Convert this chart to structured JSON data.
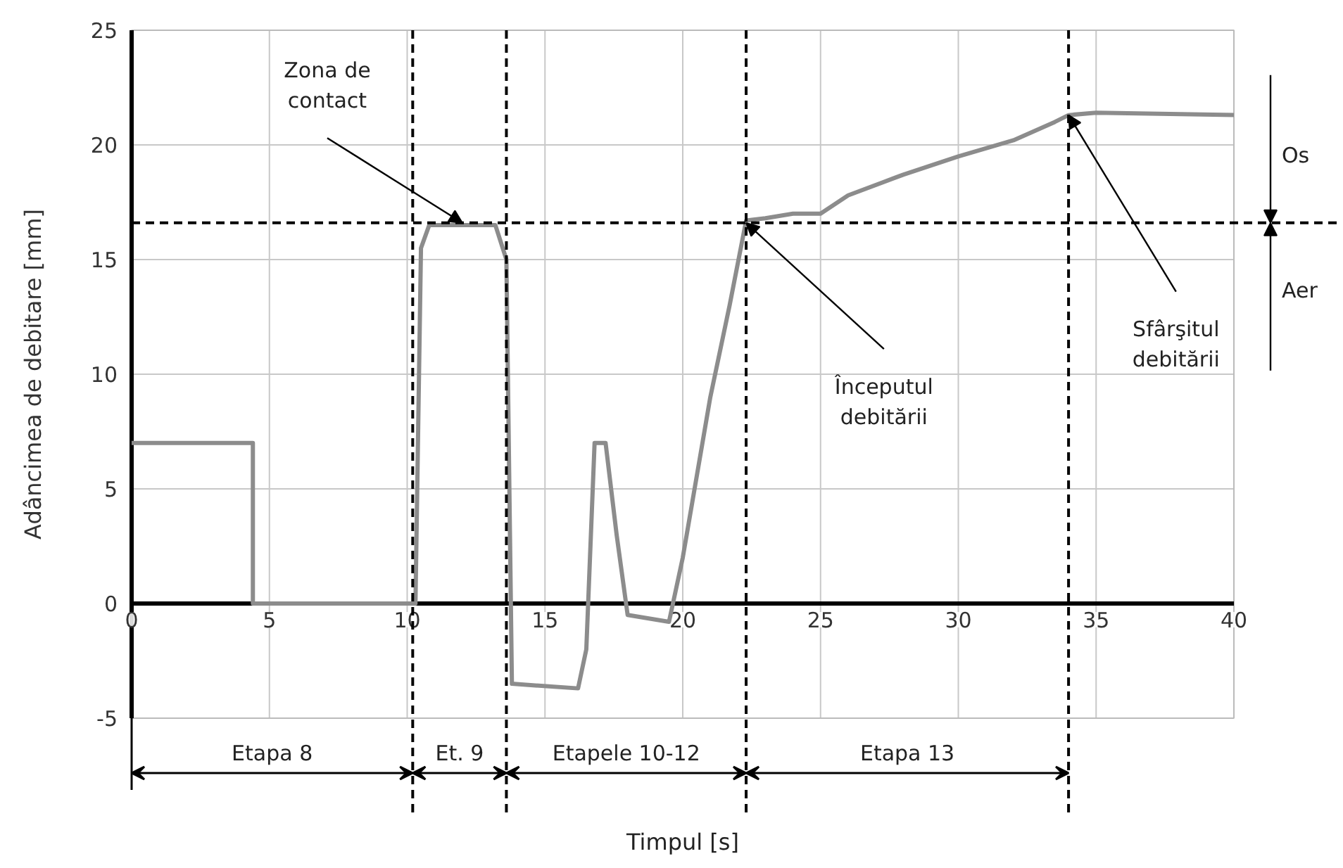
{
  "chart_data": {
    "type": "line",
    "xlabel": "Timpul [s]",
    "ylabel": "Adâncimea de debitare [mm]",
    "x": [
      0,
      4.4,
      4.4,
      10.3,
      10.5,
      10.8,
      13.2,
      13.6,
      13.8,
      16.2,
      16.5,
      16.8,
      17.2,
      17.6,
      18,
      19.5,
      20,
      21,
      21.7,
      22.3,
      23,
      24,
      25,
      26,
      28,
      30,
      32,
      33.5,
      34,
      35,
      40
    ],
    "series": [
      {
        "color": "#8c8c8c",
        "values": [
          7,
          7,
          0,
          0,
          15.5,
          16.5,
          16.5,
          15,
          -3.5,
          -3.7,
          -2,
          7,
          7,
          3,
          -0.5,
          -0.8,
          2,
          9,
          13,
          16.7,
          16.8,
          17,
          17,
          17.8,
          18.7,
          19.5,
          20.2,
          21,
          21.3,
          21.4,
          21.3
        ]
      }
    ],
    "xlim": [
      0,
      40
    ],
    "ylim": [
      -5,
      25
    ],
    "xticks": [
      0,
      5,
      10,
      15,
      20,
      25,
      30,
      35,
      40
    ],
    "yticks": [
      -5,
      0,
      5,
      10,
      15,
      20,
      25
    ],
    "grid": true,
    "line_style": "solid",
    "ref_lines": [
      {
        "axis": "y",
        "value": 16.6,
        "line_style": "dashed"
      },
      {
        "axis": "x",
        "value": 10.2,
        "line_style": "dashed"
      },
      {
        "axis": "x",
        "value": 13.6,
        "line_style": "dashed"
      },
      {
        "axis": "x",
        "value": 22.3,
        "line_style": "dashed"
      },
      {
        "axis": "x",
        "value": 34,
        "line_style": "dashed"
      }
    ],
    "annotations": [
      {
        "text": "Zona de contact",
        "x": 12,
        "y": 16.6
      },
      {
        "text": "Începutul debitării",
        "x": 22.3,
        "y": 16.6
      },
      {
        "text": "Sfârşitul debitării",
        "x": 34,
        "y": 21.3
      },
      "Etapa 8",
      "Et. 9",
      "Etapele 10-12",
      "Etapa 13",
      "Os",
      "Aer"
    ]
  }
}
